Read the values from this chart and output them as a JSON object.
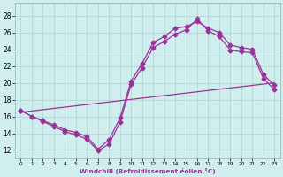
{
  "background_color": "#d0eeee",
  "grid_color": "#b0d8d8",
  "line_color": "#993399",
  "xlim": [
    -0.5,
    23.5
  ],
  "ylim": [
    11.0,
    29.5
  ],
  "xtick_labels": [
    "0",
    "1",
    "2",
    "3",
    "4",
    "5",
    "6",
    "7",
    "8",
    "9",
    "10",
    "11",
    "12",
    "13",
    "14",
    "15",
    "16",
    "17",
    "18",
    "19",
    "20",
    "21",
    "22",
    "23"
  ],
  "ytick_vals": [
    12,
    14,
    16,
    18,
    20,
    22,
    24,
    26,
    28
  ],
  "xlabel": "Windchill (Refroidissement éolien,°C)",
  "line1_x": [
    0,
    1,
    2,
    3,
    4,
    5,
    6,
    7,
    8,
    9,
    10,
    11,
    12,
    13,
    14,
    15,
    16,
    17,
    18,
    19,
    20,
    21,
    22,
    23
  ],
  "line1_y": [
    16.7,
    16.0,
    15.5,
    15.0,
    14.4,
    14.1,
    13.6,
    12.1,
    13.2,
    15.8,
    20.2,
    22.3,
    24.8,
    25.5,
    26.5,
    26.7,
    27.3,
    26.5,
    26.0,
    24.5,
    24.2,
    24.0,
    21.0,
    19.7
  ],
  "line2_x": [
    0,
    1,
    2,
    3,
    4,
    5,
    6,
    7,
    8,
    9,
    10,
    11,
    12,
    13,
    14,
    15,
    16,
    17,
    18,
    19,
    20,
    21,
    22,
    23
  ],
  "line2_y": [
    16.7,
    16.0,
    15.4,
    14.8,
    14.2,
    13.8,
    13.3,
    11.9,
    12.7,
    15.3,
    19.8,
    21.8,
    24.2,
    24.9,
    25.8,
    26.3,
    27.6,
    26.2,
    25.5,
    23.9,
    23.7,
    23.6,
    20.5,
    19.2
  ],
  "line3_x": [
    0,
    23
  ],
  "line3_y": [
    16.5,
    20.0
  ]
}
